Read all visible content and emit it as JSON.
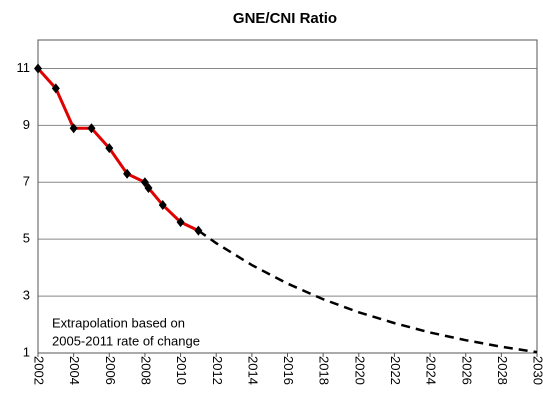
{
  "chart_data": {
    "type": "line",
    "title": "GNE/CNI Ratio",
    "x": [
      2002,
      2003,
      2004,
      2005,
      2006,
      2007,
      2008,
      2008.2,
      2009,
      2010,
      2011
    ],
    "values": [
      11,
      10.3,
      8.9,
      8.9,
      8.2,
      7.3,
      7.0,
      6.8,
      6.2,
      5.6,
      5.3
    ],
    "color": "#e00000",
    "marker_color": "#000000",
    "extrapolation": {
      "x": [
        2011,
        2012,
        2014,
        2016,
        2018,
        2020,
        2022,
        2024,
        2026,
        2028,
        2030
      ],
      "values": [
        5.3,
        4.86,
        4.09,
        3.44,
        2.89,
        2.43,
        2.05,
        1.72,
        1.45,
        1.22,
        1.03
      ],
      "color": "#000000",
      "dashed": true
    },
    "annotation": [
      "Extrapolation based on",
      "2005-2011 rate of change"
    ],
    "xlim": [
      2002,
      2030
    ],
    "xticks": [
      2002,
      2004,
      2006,
      2008,
      2010,
      2012,
      2014,
      2016,
      2018,
      2020,
      2022,
      2024,
      2026,
      2028,
      2030
    ],
    "ylim": [
      1,
      12
    ],
    "yticks": [
      1,
      3,
      5,
      7,
      9,
      11
    ],
    "grid": true
  }
}
